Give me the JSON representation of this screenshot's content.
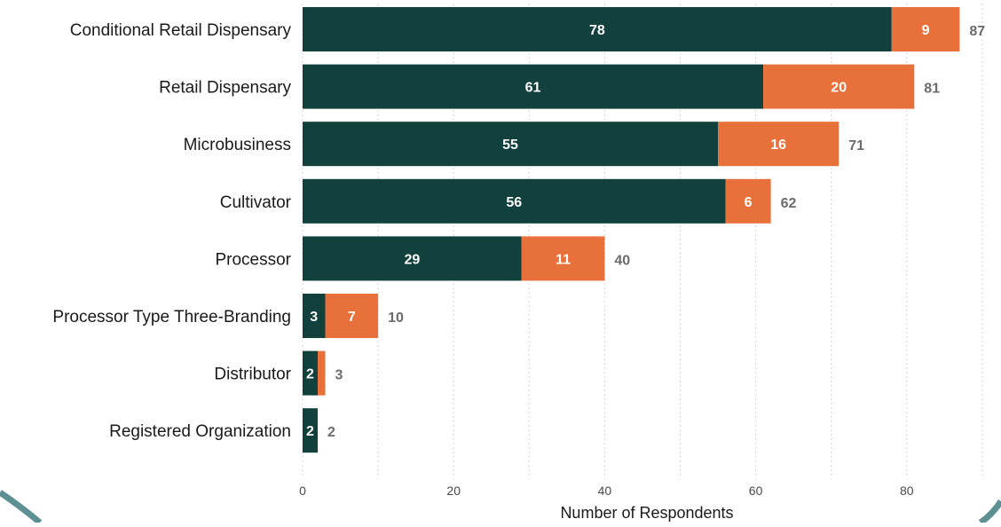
{
  "chart_data": {
    "type": "bar",
    "orientation": "horizontal",
    "stacked": true,
    "categories": [
      "Conditional Retail Dispensary",
      "Retail Dispensary",
      "Microbusiness",
      "Cultivator",
      "Processor",
      "Processor Type Three-Branding",
      "Distributor",
      "Registered Organization"
    ],
    "series": [
      {
        "values": [
          78,
          61,
          55,
          56,
          29,
          3,
          2,
          2
        ],
        "color": "#12403c"
      },
      {
        "values": [
          9,
          20,
          16,
          6,
          11,
          7,
          1,
          0
        ],
        "color": "#e8703a"
      }
    ],
    "totals": [
      87,
      81,
      71,
      62,
      40,
      10,
      3,
      2
    ],
    "segment_labels": [
      [
        "78",
        "61",
        "55",
        "56",
        "29",
        "3",
        "2",
        "2"
      ],
      [
        "9",
        "20",
        "16",
        "6",
        "11",
        "7",
        "",
        ""
      ]
    ],
    "title": "",
    "xlabel": "Number of Respondents",
    "ylabel": "",
    "xlim": [
      0,
      90
    ],
    "xticks": [
      0,
      20,
      40,
      60,
      80
    ],
    "grid": "vertical dotted",
    "legend": "none"
  }
}
